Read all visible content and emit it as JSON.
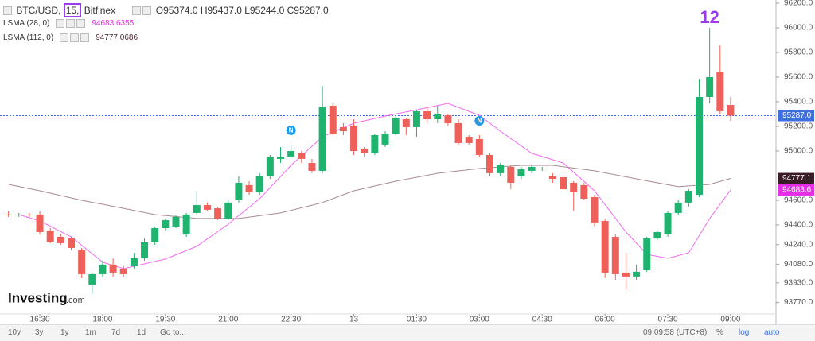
{
  "header": {
    "symbol": "BTC/USD,",
    "interval": "15,",
    "exchange": "Bitfinex",
    "open": "O95374.0",
    "high": "H95437.0",
    "low": "L95244.0",
    "close": "C95287.0"
  },
  "toolbar": {
    "ranges": [
      "10y",
      "3y",
      "1y",
      "1m",
      "7d",
      "1d"
    ],
    "goto": "Go to...",
    "time": "09:09:58 (UTC+8)",
    "percent": "%",
    "log": "log",
    "auto": "auto"
  },
  "logo": {
    "brand": "Investing",
    "suffix": ".com"
  },
  "chart_data": {
    "type": "candlestick",
    "categories": [
      null,
      null,
      null,
      "16:30",
      null,
      null,
      null,
      null,
      null,
      "18:00",
      null,
      null,
      null,
      null,
      null,
      "19:30",
      null,
      null,
      null,
      null,
      null,
      "21:00",
      null,
      null,
      null,
      null,
      null,
      "22:30",
      null,
      null,
      null,
      null,
      null,
      "13",
      null,
      null,
      null,
      null,
      null,
      "01:30",
      null,
      null,
      null,
      null,
      null,
      "03:00",
      null,
      null,
      null,
      null,
      null,
      "04:30",
      null,
      null,
      null,
      null,
      null,
      "06:00",
      null,
      null,
      null,
      null,
      null,
      "07:30",
      null,
      null,
      null,
      null,
      null,
      "09:00"
    ],
    "ohlc": [
      [
        94484,
        94510,
        94465,
        94478
      ],
      [
        94478,
        94497,
        94465,
        94484
      ],
      [
        94484,
        94497,
        94465,
        94478
      ],
      [
        94484,
        94510,
        94323,
        94342
      ],
      [
        94355,
        94374,
        94252,
        94258
      ],
      [
        94303,
        94323,
        94239,
        94252
      ],
      [
        94290,
        94303,
        94194,
        94213
      ],
      [
        94194,
        94213,
        93968,
        94000
      ],
      [
        93916,
        94013,
        93839,
        94000
      ],
      [
        94000,
        94110,
        93981,
        94078
      ],
      [
        94078,
        94129,
        93981,
        94013
      ],
      [
        94045,
        94065,
        93981,
        94000
      ],
      [
        94065,
        94174,
        94045,
        94129
      ],
      [
        94129,
        94290,
        94110,
        94258
      ],
      [
        94258,
        94387,
        94239,
        94374
      ],
      [
        94374,
        94452,
        94355,
        94439
      ],
      [
        94387,
        94478,
        94374,
        94465
      ],
      [
        94323,
        94497,
        94303,
        94484
      ],
      [
        94497,
        94677,
        94484,
        94561
      ],
      [
        94561,
        94581,
        94516,
        94523
      ],
      [
        94535,
        94548,
        94439,
        94452
      ],
      [
        94452,
        94600,
        94439,
        94581
      ],
      [
        94600,
        94794,
        94581,
        94742
      ],
      [
        94723,
        94755,
        94645,
        94665
      ],
      [
        94665,
        94820,
        94645,
        94794
      ],
      [
        94794,
        94968,
        94774,
        94955
      ],
      [
        94936,
        95032,
        94903,
        94955
      ],
      [
        94955,
        95052,
        94936,
        95000
      ],
      [
        94981,
        95000,
        94903,
        94936
      ],
      [
        94903,
        94936,
        94820,
        94839
      ],
      [
        94839,
        95529,
        94820,
        95355
      ],
      [
        95368,
        95387,
        95129,
        95142
      ],
      [
        95194,
        95226,
        95129,
        95161
      ],
      [
        95207,
        95258,
        94968,
        95000
      ],
      [
        95020,
        95032,
        94955,
        94987
      ],
      [
        94987,
        95142,
        94968,
        95129
      ],
      [
        95052,
        95161,
        95032,
        95142
      ],
      [
        95142,
        95290,
        95129,
        95271
      ],
      [
        95258,
        95271,
        95129,
        95194
      ],
      [
        95194,
        95335,
        95116,
        95323
      ],
      [
        95323,
        95355,
        95226,
        95258
      ],
      [
        95258,
        95368,
        95226,
        95303
      ],
      [
        95290,
        95303,
        95207,
        95226
      ],
      [
        95226,
        95258,
        95052,
        95065
      ],
      [
        95116,
        95129,
        95052,
        95065
      ],
      [
        95097,
        95129,
        94955,
        94968
      ],
      [
        94968,
        94987,
        94794,
        94820
      ],
      [
        94820,
        94903,
        94794,
        94884
      ],
      [
        94871,
        94884,
        94690,
        94742
      ],
      [
        94794,
        94871,
        94774,
        94858
      ],
      [
        94839,
        94884,
        94820,
        94871
      ],
      [
        94852,
        94871,
        94839,
        94858
      ],
      [
        94794,
        94820,
        94742,
        94774
      ],
      [
        94787,
        94794,
        94677,
        94690
      ],
      [
        94742,
        94755,
        94516,
        94665
      ],
      [
        94723,
        94742,
        94600,
        94613
      ],
      [
        94626,
        94645,
        94387,
        94420
      ],
      [
        94432,
        94452,
        93968,
        94013
      ],
      [
        94303,
        94323,
        93955,
        94000
      ],
      [
        94013,
        94174,
        93871,
        93981
      ],
      [
        93981,
        94078,
        93955,
        94020
      ],
      [
        94032,
        94303,
        94020,
        94290
      ],
      [
        94290,
        94355,
        94278,
        94342
      ],
      [
        94323,
        94510,
        94303,
        94497
      ],
      [
        94497,
        94600,
        94484,
        94581
      ],
      [
        94581,
        94690,
        94548,
        94677
      ],
      [
        94645,
        95581,
        94626,
        95439
      ],
      [
        95439,
        96000,
        95387,
        95600
      ],
      [
        95645,
        95858,
        95303,
        95323
      ],
      [
        95374,
        95437,
        95244,
        95287
      ]
    ],
    "up_color": "#1fb36f",
    "down_color": "#f0605a",
    "lines": [
      {
        "name": "LSMA (28, 0)",
        "legend_value": "94683.6355",
        "color": "#f06cf0",
        "x": [
          1,
          3,
          6,
          9,
          11,
          15,
          18,
          21,
          24,
          27,
          30,
          33,
          36,
          39,
          42,
          45,
          47,
          50,
          53,
          56,
          59,
          61,
          63,
          65,
          67,
          69
        ],
        "values": [
          94484,
          94432,
          94303,
          94097,
          94045,
          94123,
          94226,
          94406,
          94613,
          94884,
          95116,
          95226,
          95284,
          95335,
          95387,
          95290,
          95161,
          94981,
          94903,
          94677,
          94342,
          94161,
          94129,
          94174,
          94452,
          94684
        ]
      },
      {
        "name": "LSMA (112, 0)",
        "legend_value": "94777.0686",
        "color": "#a88a8e",
        "x": [
          0,
          3,
          7,
          11,
          14,
          18,
          22,
          26,
          30,
          33,
          37,
          41,
          45,
          49,
          52,
          56,
          60,
          64,
          67,
          69
        ],
        "values": [
          94729,
          94677,
          94600,
          94535,
          94484,
          94452,
          94452,
          94497,
          94581,
          94677,
          94755,
          94819,
          94858,
          94884,
          94884,
          94839,
          94774,
          94710,
          94729,
          94777
        ]
      }
    ],
    "ylim": [
      93690,
      96226
    ],
    "yticks": [
      {
        "value": 96200,
        "label": "96200.0"
      },
      {
        "value": 96000,
        "label": "96000.0"
      },
      {
        "value": 95800,
        "label": "95800.0"
      },
      {
        "value": 95600,
        "label": "95600.0"
      },
      {
        "value": 95400,
        "label": "95400.0"
      },
      {
        "value": 95200,
        "label": "95200.0"
      },
      {
        "value": 95000,
        "label": "95000.0"
      },
      {
        "value": 94600,
        "label": "94600.0"
      },
      {
        "value": 94400,
        "label": "94400.0"
      },
      {
        "value": 94240,
        "label": "94240.0"
      },
      {
        "value": 94080,
        "label": "94080.0"
      },
      {
        "value": 93930,
        "label": "93930.0"
      },
      {
        "value": 93770,
        "label": "93770.0"
      }
    ],
    "current_price": 95287,
    "price_badges": [
      {
        "value": 95287,
        "label": "95287.0",
        "color": "#3d6fe0"
      },
      {
        "value": 94777,
        "label": "94777.1",
        "color": "#3a1c26"
      },
      {
        "value": 94684,
        "label": "94683.6",
        "color": "#e62ee6"
      }
    ],
    "markers": [
      {
        "index": 27,
        "label": "N"
      },
      {
        "index": 45,
        "label": "N"
      }
    ],
    "annotation": {
      "index": 67,
      "text": "12",
      "color": "#9b3bf0"
    },
    "grid": false
  }
}
